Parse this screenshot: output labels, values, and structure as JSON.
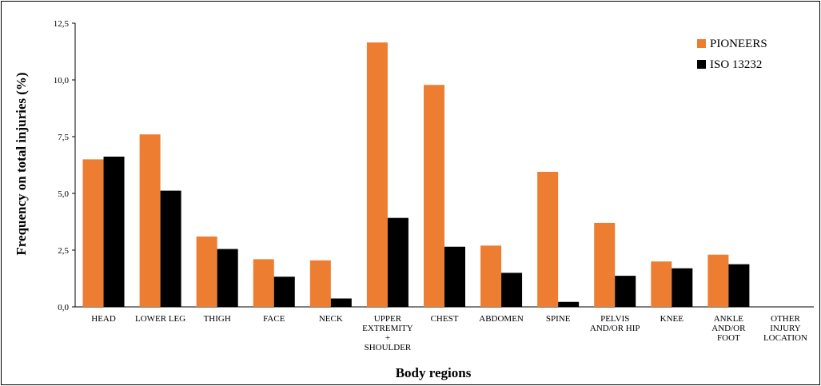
{
  "chart_data": {
    "type": "bar",
    "title": "",
    "xlabel": "Body regions",
    "ylabel": "Frequency on total injuries (%)",
    "ylim": [
      0,
      12.5
    ],
    "yticks": [
      "0,0",
      "2,5",
      "5,0",
      "7,5",
      "10,0",
      "12,5"
    ],
    "ytick_values": [
      0,
      2.5,
      5,
      7.5,
      10,
      12.5
    ],
    "grid": false,
    "legend_position": "top-right",
    "categories": [
      [
        "HEAD"
      ],
      [
        "LOWER LEG"
      ],
      [
        "THIGH"
      ],
      [
        "FACE"
      ],
      [
        "NECK"
      ],
      [
        "UPPER",
        "EXTREMITY",
        "+",
        "SHOULDER"
      ],
      [
        "CHEST"
      ],
      [
        "ABDOMEN"
      ],
      [
        "SPINE"
      ],
      [
        "PELVIS",
        "AND/OR HIP"
      ],
      [
        "KNEE"
      ],
      [
        "ANKLE",
        "AND/OR",
        "FOOT"
      ],
      [
        "OTHER",
        "INJURY",
        "LOCATION"
      ]
    ],
    "series": [
      {
        "name": "PIONEERS",
        "color": "#ED7D31",
        "values": [
          6.5,
          7.6,
          3.1,
          2.1,
          2.05,
          11.65,
          9.78,
          2.7,
          5.95,
          3.7,
          2.0,
          2.3,
          0.0
        ]
      },
      {
        "name": "ISO 13232",
        "color": "#000000",
        "values": [
          6.62,
          5.12,
          2.55,
          1.33,
          0.37,
          3.92,
          2.65,
          1.5,
          0.22,
          1.37,
          1.7,
          1.88,
          0.0
        ]
      }
    ]
  }
}
